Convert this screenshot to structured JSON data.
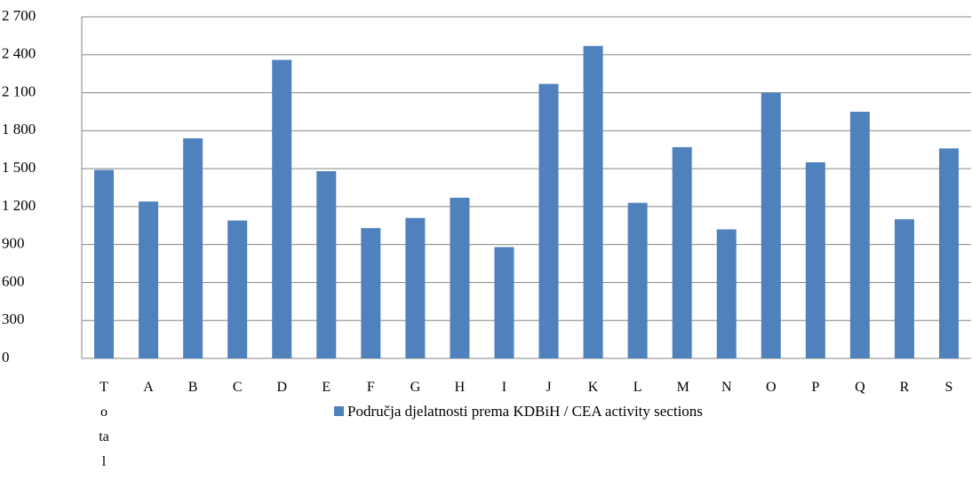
{
  "chart_data": {
    "type": "bar",
    "categories": [
      "Total",
      "A",
      "B",
      "C",
      "D",
      "E",
      "F",
      "G",
      "H",
      "I",
      "J",
      "K",
      "L",
      "M",
      "N",
      "O",
      "P",
      "Q",
      "R",
      "S"
    ],
    "series": [
      {
        "name": "Područja djelatnosti prema KDBiH / CEA activity sections",
        "color": "#4f81bd",
        "values": [
          1490,
          1240,
          1740,
          1090,
          2360,
          1480,
          1030,
          1110,
          1270,
          880,
          2170,
          2470,
          1230,
          1670,
          1020,
          2100,
          1550,
          1950,
          1100,
          1660
        ]
      }
    ],
    "ylim": [
      0,
      2700
    ],
    "yticks": [
      0,
      300,
      600,
      900,
      {
        "value": 1200,
        "label": "1 200"
      },
      {
        "value": 1500,
        "label": "1 500"
      },
      {
        "value": 1800,
        "label": "1 800"
      },
      {
        "value": 2100,
        "label": "2 100"
      },
      {
        "value": 2400,
        "label": "2 400"
      },
      {
        "value": 2700,
        "label": "2 700"
      }
    ],
    "grid": true,
    "legend": "bottom"
  }
}
